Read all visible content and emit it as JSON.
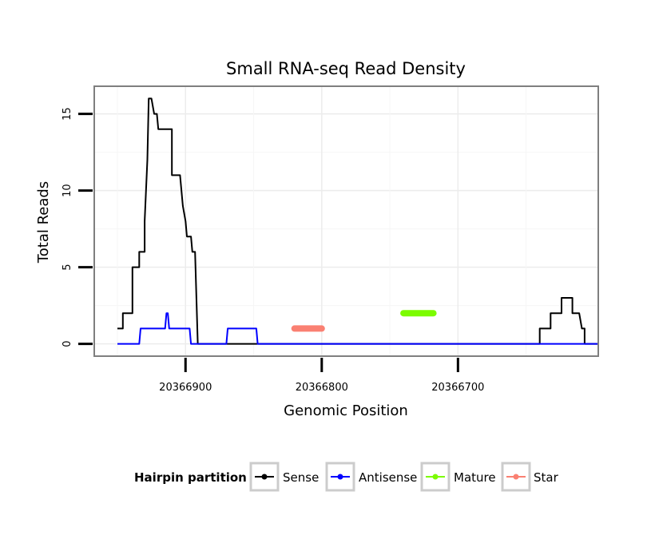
{
  "chart_data": {
    "type": "line",
    "title": "Small RNA-seq Read Density",
    "xlabel": "Genomic Position",
    "ylabel": "Total Reads",
    "x_reversed": true,
    "xlim": [
      20366967,
      20366597
    ],
    "ylim": [
      -0.8,
      16.8
    ],
    "x_ticks": [
      {
        "value": 20366900,
        "label": "20366900"
      },
      {
        "value": 20366800,
        "label": "20366800"
      },
      {
        "value": 20366700,
        "label": "20366700"
      }
    ],
    "x_minor_grid": [
      20366950,
      20366850,
      20366750,
      20366650
    ],
    "y_ticks": [
      {
        "value": 0,
        "label": "0"
      },
      {
        "value": 5,
        "label": "5"
      },
      {
        "value": 10,
        "label": "10"
      },
      {
        "value": 15,
        "label": "15"
      }
    ],
    "y_minor_grid": [
      2.5,
      7.5,
      12.5
    ],
    "legend": {
      "title": "Hairpin partition",
      "placement": "bottom",
      "entries": [
        {
          "name": "Sense",
          "color": "#000000"
        },
        {
          "name": "Antisense",
          "color": "#0000ff"
        },
        {
          "name": "Mature",
          "color": "#7cfc00"
        },
        {
          "name": "Star",
          "color": "#fa8072"
        }
      ]
    },
    "series": [
      {
        "name": "Sense",
        "color": "#000000",
        "width": 2,
        "x": [
          20366950,
          20366946,
          20366946,
          20366939,
          20366939,
          20366934,
          20366934,
          20366930,
          20366930,
          20366928,
          20366927,
          20366925,
          20366923,
          20366921,
          20366920,
          20366918,
          20366918,
          20366910,
          20366910,
          20366904,
          20366902,
          20366900,
          20366899,
          20366896,
          20366895,
          20366893,
          20366891,
          20366889,
          20366884,
          20366884,
          20366850,
          20366840,
          20366820,
          20366800,
          20366780,
          20366760,
          20366740,
          20366720,
          20366700,
          20366680,
          20366660,
          20366640,
          20366640,
          20366632,
          20366632,
          20366624,
          20366624,
          20366616,
          20366616,
          20366611,
          20366609,
          20366607,
          20366607,
          20366597
        ],
        "y": [
          1,
          1,
          2,
          2,
          5,
          5,
          6,
          6,
          8,
          12,
          16,
          16,
          15,
          15,
          14,
          14,
          14,
          14,
          11,
          11,
          9,
          8,
          7,
          7,
          6,
          6,
          0,
          0,
          0,
          0,
          0,
          0,
          0,
          0,
          0,
          0,
          0,
          0,
          0,
          0,
          0,
          0,
          1,
          1,
          2,
          2,
          3,
          3,
          2,
          2,
          1,
          1,
          0,
          0
        ]
      },
      {
        "name": "Antisense",
        "color": "#0000ff",
        "width": 2,
        "x": [
          20366950,
          20366934,
          20366933,
          20366916,
          20366915,
          20366914,
          20366913,
          20366912,
          20366911,
          20366897,
          20366896,
          20366870,
          20366869,
          20366848,
          20366847,
          20366597
        ],
        "y": [
          0,
          0,
          1,
          1,
          1,
          2,
          2,
          1,
          1,
          1,
          0,
          0,
          1,
          1,
          0,
          0
        ]
      },
      {
        "name": "Star",
        "color": "#fa8072",
        "width": 8,
        "x": [
          20366820,
          20366800
        ],
        "y": [
          1,
          1
        ]
      },
      {
        "name": "Mature",
        "color": "#7cfc00",
        "width": 8,
        "x": [
          20366740,
          20366718
        ],
        "y": [
          2,
          2
        ]
      }
    ]
  }
}
